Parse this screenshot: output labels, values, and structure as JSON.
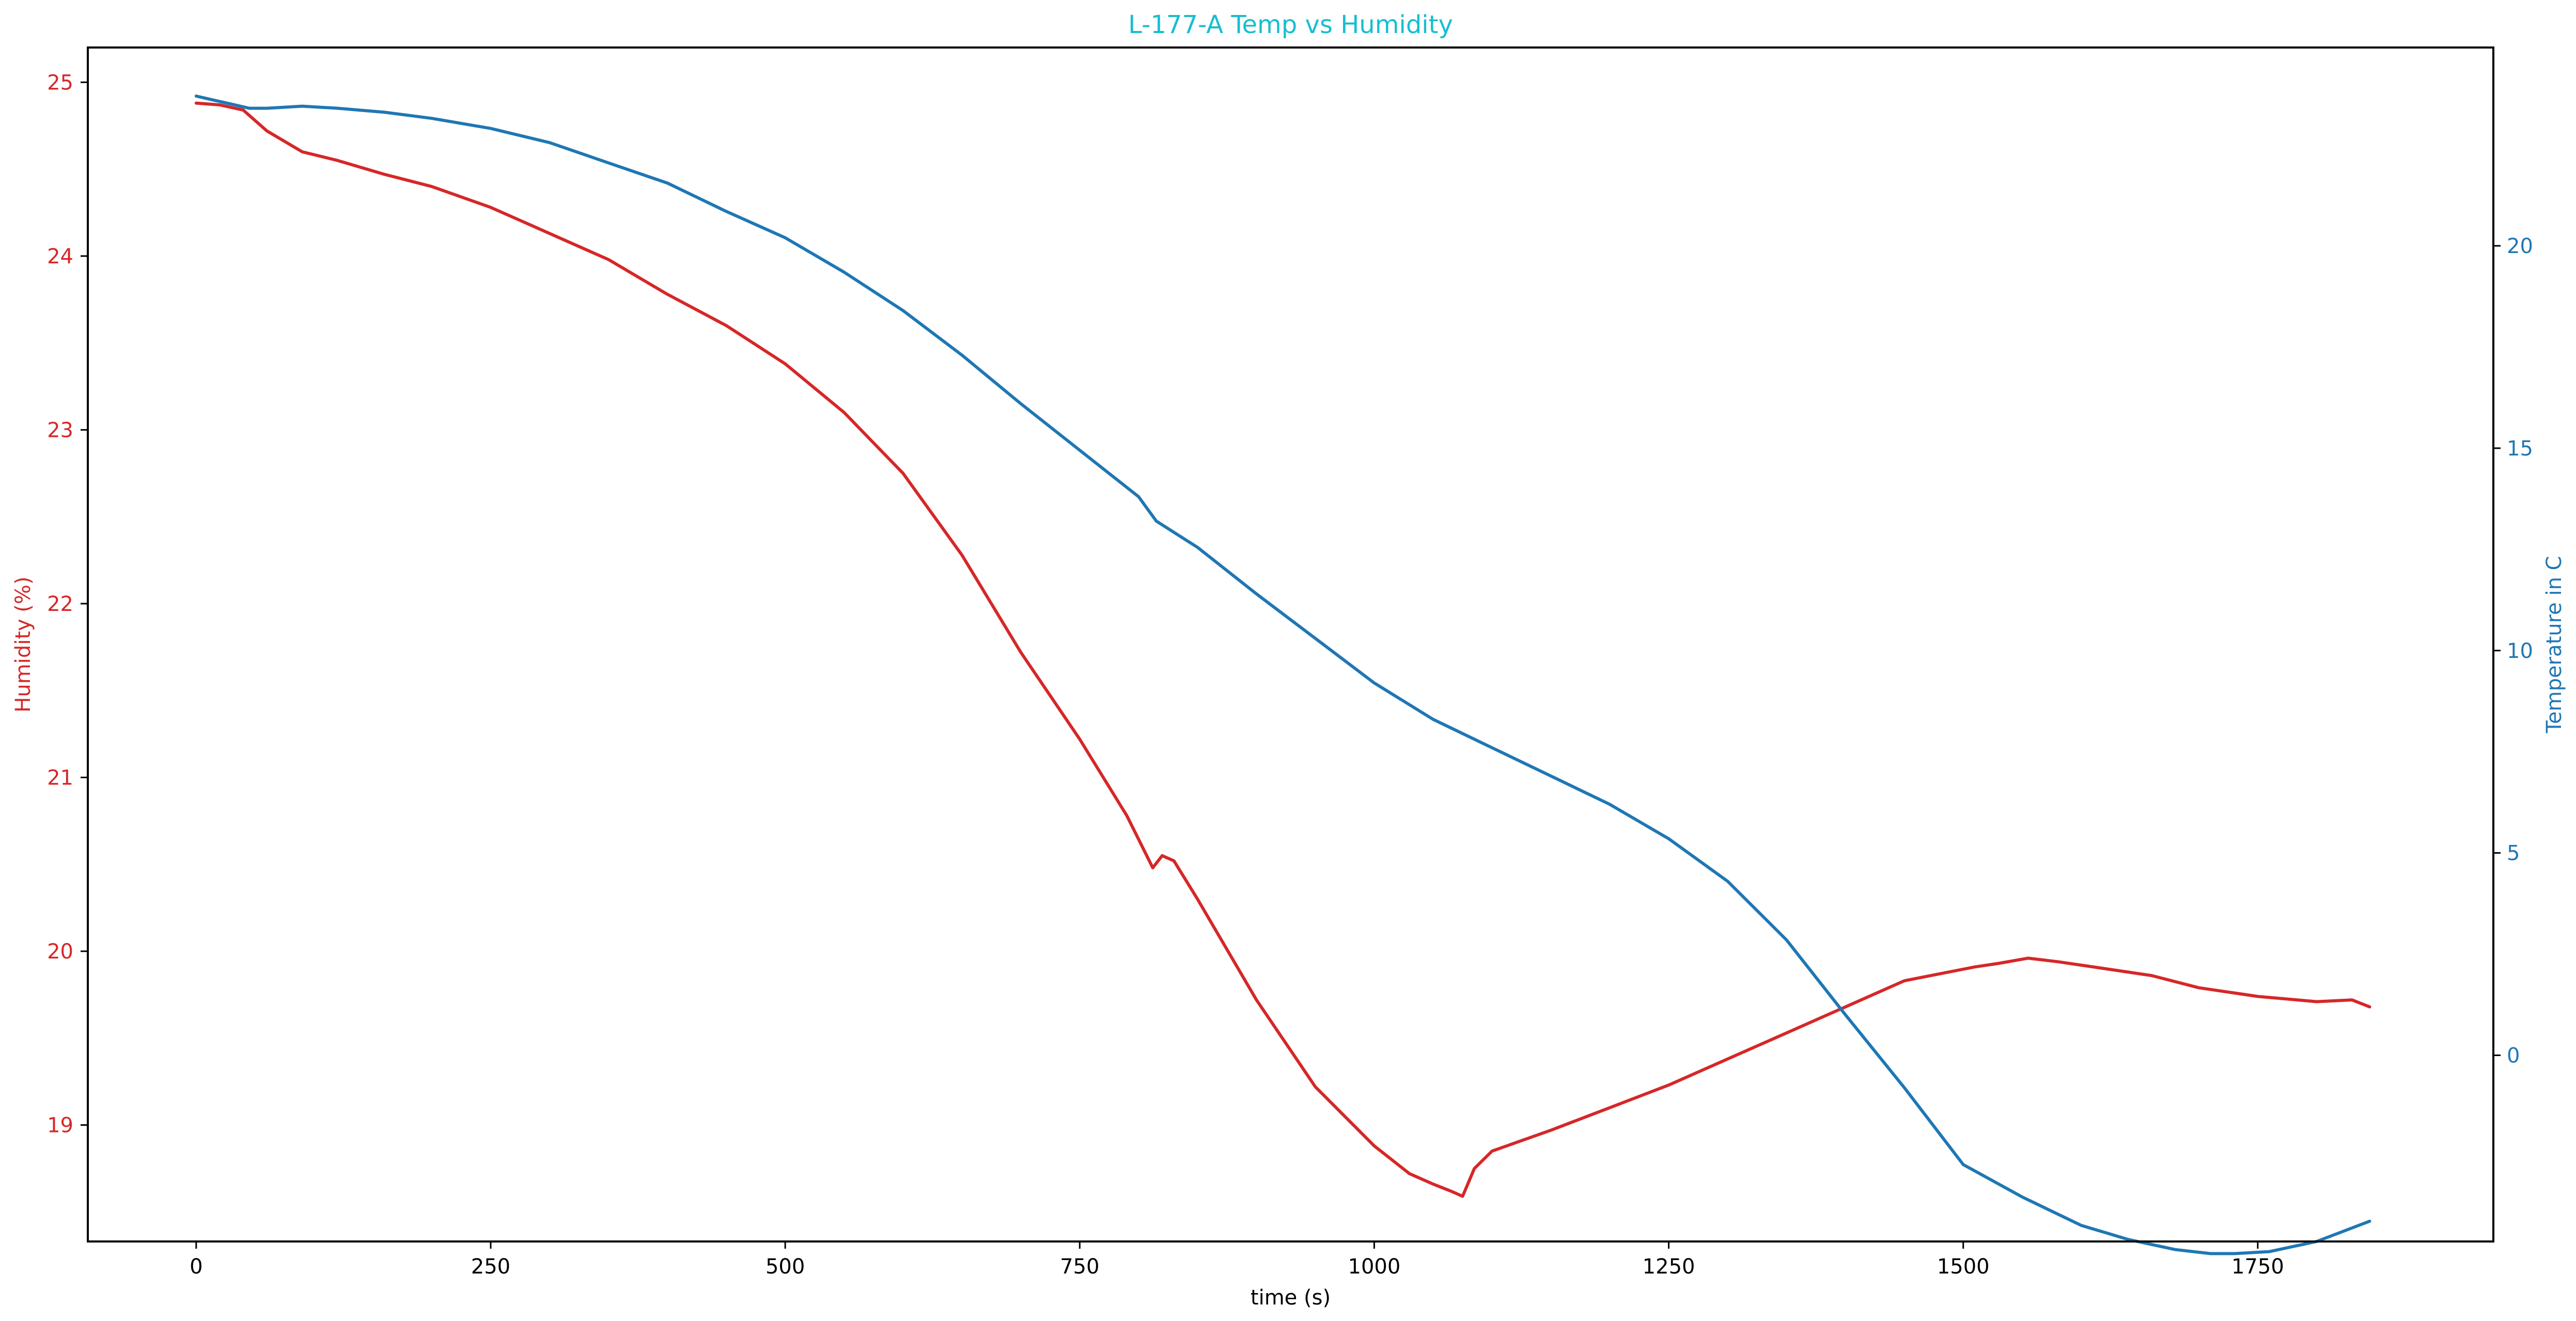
{
  "chart_data": {
    "type": "line",
    "title": "L-177-A Temp vs Humidity",
    "title_color": "#17becf",
    "xlabel": "time (s)",
    "xlim": [
      -92,
      1950
    ],
    "xticks": [
      0,
      250,
      500,
      750,
      1000,
      1250,
      1500,
      1750
    ],
    "y_left": {
      "label": "Humidity (%)",
      "color": "#d62728",
      "lim": [
        18.33,
        25.2
      ],
      "ticks": [
        19,
        20,
        21,
        22,
        23,
        24,
        25
      ]
    },
    "y_right": {
      "label": "Temperature in C",
      "color": "#1f77b4",
      "lim": [
        -4.6,
        24.9
      ],
      "ticks": [
        0,
        5,
        10,
        15,
        20
      ]
    },
    "grid": false,
    "series": [
      {
        "axis": "left",
        "color": "#d62728",
        "x": [
          0,
          20,
          40,
          60,
          90,
          120,
          160,
          200,
          250,
          300,
          350,
          400,
          450,
          500,
          550,
          600,
          650,
          700,
          750,
          790,
          812,
          820,
          830,
          850,
          900,
          950,
          1000,
          1030,
          1050,
          1065,
          1075,
          1085,
          1100,
          1150,
          1200,
          1250,
          1300,
          1350,
          1400,
          1430,
          1450,
          1480,
          1510,
          1530,
          1555,
          1580,
          1620,
          1660,
          1700,
          1750,
          1800,
          1830,
          1845
        ],
        "y": [
          24.88,
          24.87,
          24.84,
          24.72,
          24.6,
          24.55,
          24.47,
          24.4,
          24.28,
          24.13,
          23.98,
          23.78,
          23.6,
          23.38,
          23.1,
          22.75,
          22.28,
          21.72,
          21.22,
          20.78,
          20.48,
          20.55,
          20.52,
          20.3,
          19.72,
          19.22,
          18.88,
          18.72,
          18.66,
          18.62,
          18.59,
          18.75,
          18.85,
          18.97,
          19.1,
          19.23,
          19.38,
          19.53,
          19.68,
          19.77,
          19.83,
          19.87,
          19.91,
          19.93,
          19.96,
          19.94,
          19.9,
          19.86,
          19.79,
          19.74,
          19.71,
          19.72,
          19.68
        ]
      },
      {
        "axis": "right",
        "color": "#1f77b4",
        "x": [
          0,
          15,
          30,
          45,
          60,
          90,
          120,
          160,
          200,
          250,
          300,
          350,
          400,
          450,
          500,
          550,
          600,
          650,
          700,
          750,
          800,
          815,
          850,
          900,
          950,
          1000,
          1050,
          1100,
          1150,
          1200,
          1250,
          1300,
          1350,
          1400,
          1450,
          1500,
          1550,
          1600,
          1640,
          1680,
          1710,
          1730,
          1760,
          1800,
          1845
        ],
        "y": [
          23.7,
          23.6,
          23.5,
          23.4,
          23.4,
          23.45,
          23.4,
          23.3,
          23.15,
          22.9,
          22.55,
          22.05,
          21.55,
          20.85,
          20.2,
          19.35,
          18.4,
          17.3,
          16.1,
          14.95,
          13.8,
          13.2,
          12.55,
          11.4,
          10.3,
          9.2,
          8.3,
          7.6,
          6.9,
          6.2,
          5.35,
          4.3,
          2.85,
          1.0,
          -0.8,
          -2.7,
          -3.5,
          -4.2,
          -4.55,
          -4.8,
          -4.9,
          -4.9,
          -4.85,
          -4.6,
          -4.1
        ]
      }
    ]
  }
}
